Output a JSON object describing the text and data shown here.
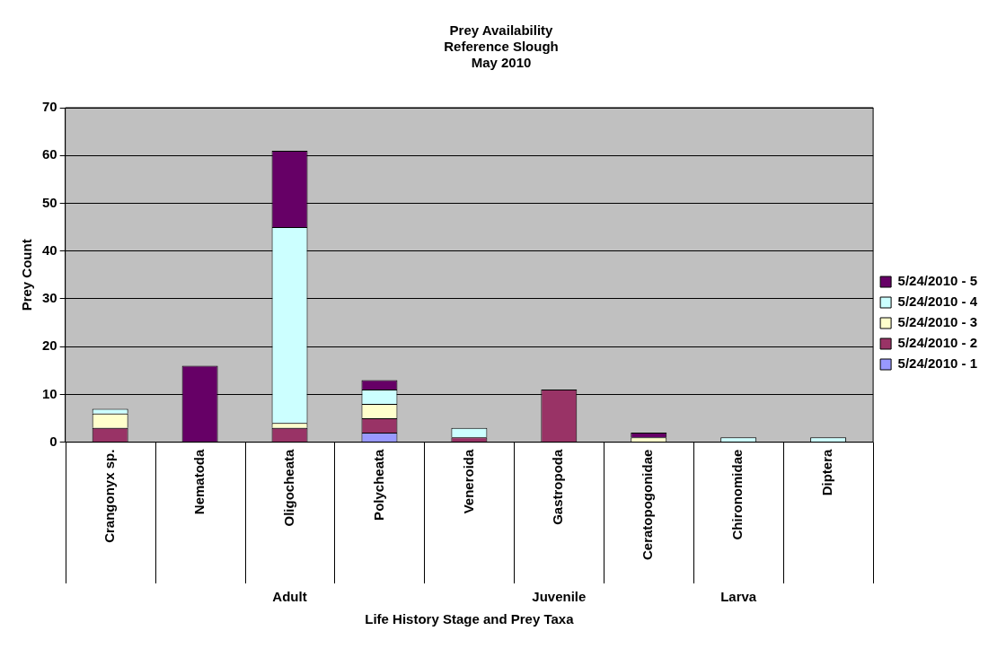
{
  "chart_data": {
    "type": "bar",
    "title": "Prey Availability\nReference Slough\nMay 2010",
    "xlabel": "Life History Stage and Prey Taxa",
    "ylabel": "Prey Count",
    "categories": [
      "Crangonyx sp.",
      "Nematoda",
      "Oligocheata",
      "Polycheata",
      "Veneroida",
      "Gastropoda",
      "Ceratopogonidae",
      "Chironomidae",
      "Diptera"
    ],
    "series": [
      {
        "name": "5/24/2010 - 1",
        "color": "#9999ff",
        "values": [
          null,
          null,
          null,
          2,
          null,
          null,
          null,
          null,
          null
        ]
      },
      {
        "name": "5/24/2010 - 2",
        "color": "#993366",
        "values": [
          3,
          null,
          3,
          3,
          1,
          11,
          null,
          null,
          null
        ]
      },
      {
        "name": "5/24/2010 - 3",
        "color": "#ffffcc",
        "values": [
          3,
          null,
          1,
          3,
          null,
          null,
          1,
          null,
          null
        ]
      },
      {
        "name": "5/24/2010 - 4",
        "color": "#ccffff",
        "values": [
          1,
          null,
          41,
          3,
          2,
          null,
          null,
          1,
          1
        ]
      },
      {
        "name": "5/24/2010 - 5",
        "color": "#660066",
        "values": [
          null,
          16,
          16,
          2,
          null,
          null,
          1,
          null,
          null
        ]
      }
    ],
    "stacked": true,
    "ylim": [
      0,
      70
    ],
    "yticks": [
      0,
      10,
      20,
      30,
      40,
      50,
      60,
      70
    ],
    "grid": "y",
    "legend": "right",
    "annotations": [
      "Adult",
      "Juvenile",
      "Larva"
    ]
  }
}
